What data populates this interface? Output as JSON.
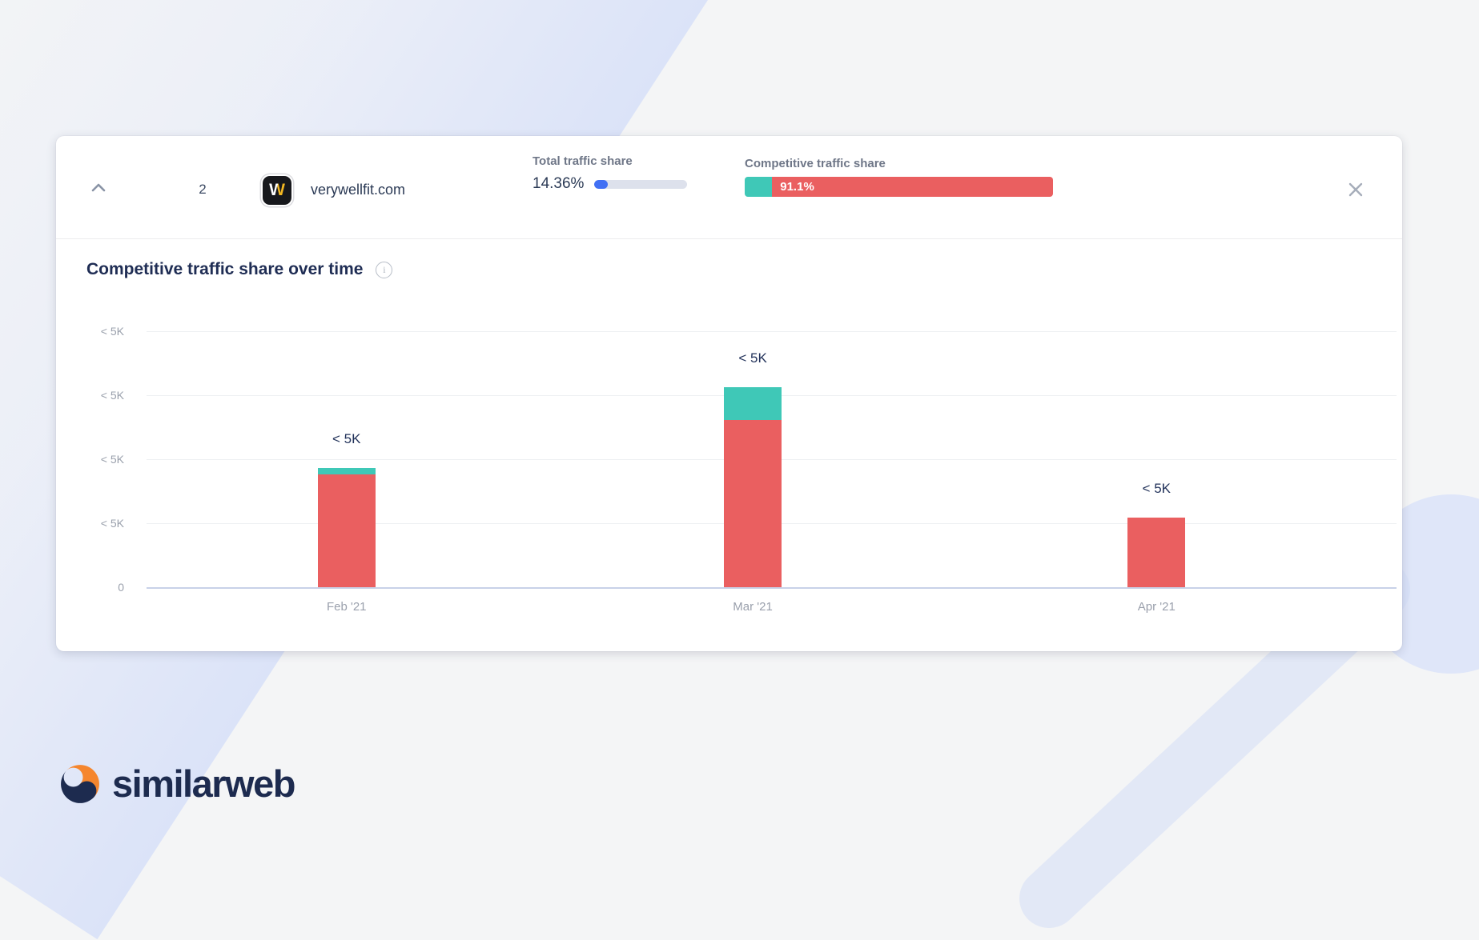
{
  "header": {
    "rank": "2",
    "favicon_letter": "W",
    "domain": "verywellfit.com",
    "total_traffic": {
      "label": "Total traffic share",
      "value": "14.36%",
      "percent": 14.36
    },
    "competitive_traffic": {
      "label": "Competitive traffic share",
      "value": "91.1%",
      "teal_percent": 8.9,
      "red_percent": 91.1
    }
  },
  "section": {
    "title": "Competitive traffic share over time",
    "info_glyph": "i"
  },
  "chart_data": {
    "type": "bar",
    "stacked": true,
    "categories": [
      "Feb '21",
      "Mar '21",
      "Apr '21"
    ],
    "series": [
      {
        "id": "teal-segment",
        "color": "#3FC8B7",
        "values": [
          0.1,
          0.51,
          0
        ]
      },
      {
        "id": "red-segment",
        "color": "#EA5F60",
        "values": [
          1.76,
          2.61,
          1.09
        ]
      }
    ],
    "value_labels": [
      "< 5K",
      "< 5K",
      "< 5K"
    ],
    "y_tick_labels": [
      "< 5K",
      "< 5K",
      "< 5K",
      "< 5K",
      "0"
    ],
    "ylim": [
      0,
      4
    ],
    "value_unit": "gridline-units (axis buckets shown as < 5K)",
    "grid": true,
    "legend_position": "none",
    "title": "Competitive traffic share over time",
    "xlabel": "",
    "ylabel": ""
  },
  "logo": {
    "text": "similarweb"
  },
  "colors": {
    "bar_red": "#EA5F60",
    "bar_teal": "#3FC8B7",
    "progress_blue": "#4170F4",
    "navy_text": "#1F2D54",
    "logo_navy": "#1D2B4F",
    "logo_orange": "#F5862E"
  }
}
